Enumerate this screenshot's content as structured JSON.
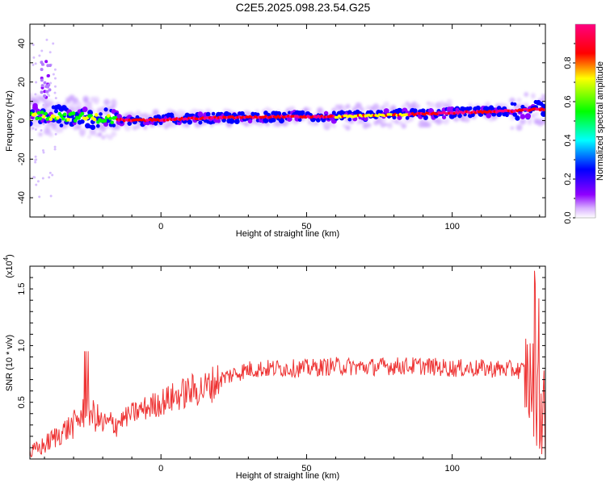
{
  "title": "C2E5.2025.098.23.54.G25",
  "chart_data": [
    {
      "type": "heatmap",
      "xlabel": "Height of straight line (km)",
      "ylabel": "Frequency (Hz)",
      "xlim": [
        -45,
        132
      ],
      "ylim": [
        -50,
        50
      ],
      "x_ticks": [
        "0",
        "50",
        "100"
      ],
      "y_ticks": [
        "40",
        "20",
        "0",
        "-20",
        "-40"
      ],
      "colorbar": {
        "label": "Normalized spectral amplitude",
        "range": [
          0,
          1
        ],
        "ticks": [
          "0.0",
          "0.2",
          "0.4",
          "0.6",
          "0.8"
        ],
        "colors": [
          "#ffffff",
          "#8f00ff",
          "#0000ff",
          "#00ffff",
          "#00ff00",
          "#ffff00",
          "#ff0000",
          "#ff0080"
        ]
      },
      "ridge": {
        "x": [
          -45,
          -30,
          -20,
          -10,
          0,
          20,
          40,
          60,
          80,
          100,
          120,
          132
        ],
        "frequency": [
          3,
          2,
          1,
          0,
          0.5,
          1.5,
          2,
          2,
          3,
          4,
          5,
          6
        ]
      }
    },
    {
      "type": "line",
      "xlabel": "Height of straight line (km)",
      "ylabel": "SNR (10 * v/v)",
      "y_multiplier": "(x10",
      "y_multiplier_exp": "4",
      "y_multiplier_close": ")",
      "xlim": [
        -45,
        132
      ],
      "ylim": [
        0,
        1.7
      ],
      "x_ticks": [
        "0",
        "50",
        "100"
      ],
      "y_ticks": [
        "0.5",
        "1.0",
        "1.5"
      ],
      "line_color": "#ee3333",
      "series": [
        {
          "x": [
            -45,
            -40,
            -35,
            -30,
            -25,
            -20,
            -15,
            -10,
            -5,
            0,
            5,
            10,
            15,
            20,
            25,
            30,
            40,
            50,
            60,
            70,
            80,
            90,
            100,
            110,
            120,
            125,
            128,
            130,
            132
          ],
          "y": [
            0.05,
            0.12,
            0.22,
            0.3,
            0.45,
            0.3,
            0.32,
            0.4,
            0.45,
            0.5,
            0.55,
            0.6,
            0.62,
            0.7,
            0.75,
            0.79,
            0.8,
            0.8,
            0.82,
            0.81,
            0.82,
            0.82,
            0.8,
            0.8,
            0.79,
            0.78,
            0.6,
            0.5,
            0.3
          ]
        }
      ]
    }
  ]
}
